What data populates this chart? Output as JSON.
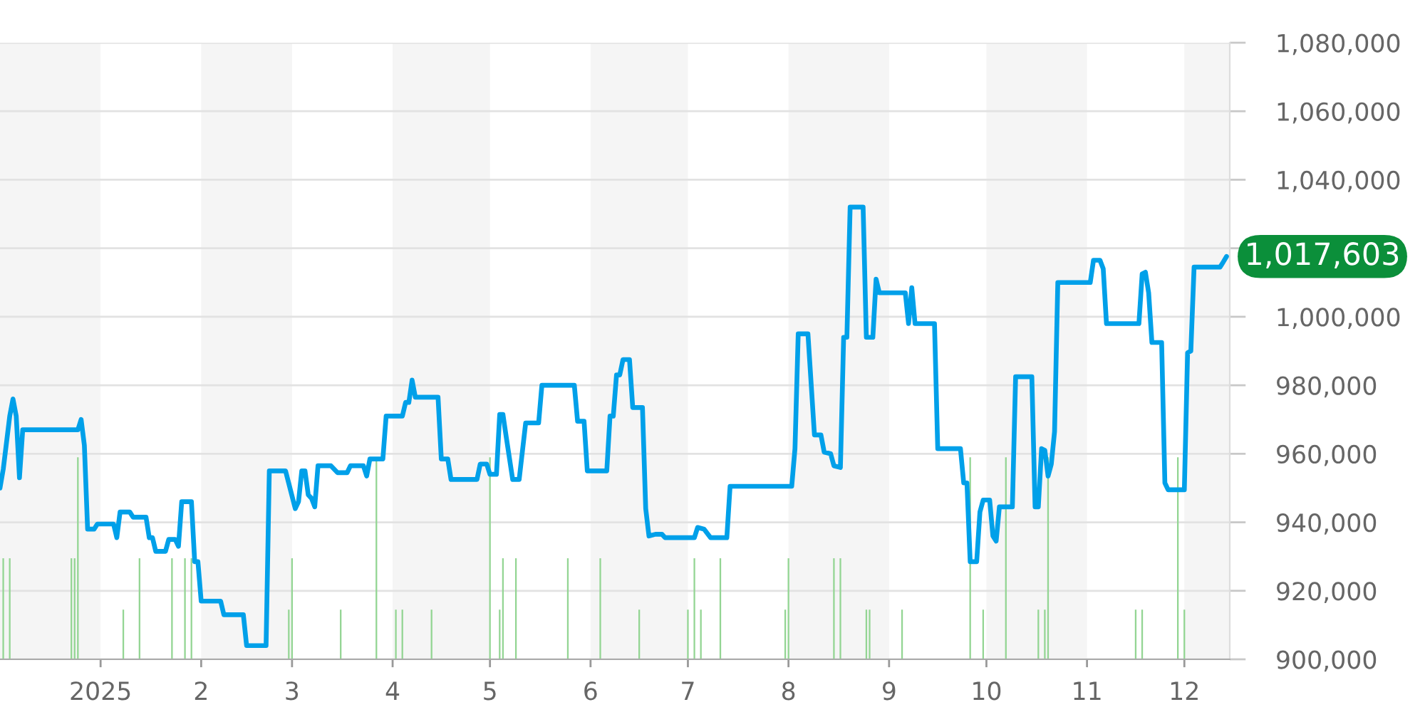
{
  "chart_data": {
    "type": "line",
    "xlim": [
      "2024-12-01",
      "2025-12-15"
    ],
    "xticks": [
      {
        "value": "2025-01-01",
        "label": "2025"
      },
      {
        "value": "2025-02-01",
        "label": "2"
      },
      {
        "value": "2025-03-01",
        "label": "3"
      },
      {
        "value": "2025-04-01",
        "label": "4"
      },
      {
        "value": "2025-05-01",
        "label": "5"
      },
      {
        "value": "2025-06-01",
        "label": "6"
      },
      {
        "value": "2025-07-01",
        "label": "7"
      },
      {
        "value": "2025-08-01",
        "label": "8"
      },
      {
        "value": "2025-09-01",
        "label": "9"
      },
      {
        "value": "2025-10-01",
        "label": "10"
      },
      {
        "value": "2025-11-01",
        "label": "11"
      },
      {
        "value": "2025-12-01",
        "label": "12"
      }
    ],
    "ylim": [
      900000,
      1080000
    ],
    "yticks": [
      {
        "value": 900000,
        "label": "900,000"
      },
      {
        "value": 920000,
        "label": "920,000"
      },
      {
        "value": 940000,
        "label": "940,000"
      },
      {
        "value": 960000,
        "label": "960,000"
      },
      {
        "value": 980000,
        "label": "980,000"
      },
      {
        "value": 1000000,
        "label": "1,000,000"
      },
      {
        "value": 1020000,
        "label": null
      },
      {
        "value": 1040000,
        "label": "1,040,000"
      },
      {
        "value": 1060000,
        "label": "1,060,000"
      },
      {
        "value": 1080000,
        "label": "1,080,000"
      }
    ],
    "grid": "y",
    "bands": [
      {
        "axis": "x",
        "from": "2024-12-01",
        "to": "2025-01-01",
        "color": "#f5f5f5"
      },
      {
        "axis": "x",
        "from": "2025-02-01",
        "to": "2025-03-01",
        "color": "#f5f5f5"
      },
      {
        "axis": "x",
        "from": "2025-04-01",
        "to": "2025-05-01",
        "color": "#f5f5f5"
      },
      {
        "axis": "x",
        "from": "2025-06-01",
        "to": "2025-07-01",
        "color": "#f5f5f5"
      },
      {
        "axis": "x",
        "from": "2025-08-01",
        "to": "2025-09-01",
        "color": "#f5f5f5"
      },
      {
        "axis": "x",
        "from": "2025-10-01",
        "to": "2025-11-01",
        "color": "#f5f5f5"
      },
      {
        "axis": "x",
        "from": "2025-12-01",
        "to": "2025-12-15",
        "color": "#f5f5f5"
      }
    ],
    "annotations": [
      {
        "text": "1,017,603",
        "x": "2025-12-14",
        "y": 1017603
      }
    ],
    "series": [
      {
        "type": "bar",
        "color": "#93d593",
        "x": [
          "2024-12-02",
          "2024-12-04",
          "2024-12-23",
          "2024-12-24",
          "2024-12-25",
          "2025-01-08",
          "2025-01-13",
          "2025-01-23",
          "2025-01-27",
          "2025-01-29",
          "2025-02-28",
          "2025-03-01",
          "2025-03-16",
          "2025-03-27",
          "2025-04-02",
          "2025-04-04",
          "2025-04-13",
          "2025-05-01",
          "2025-05-04",
          "2025-05-05",
          "2025-05-09",
          "2025-05-25",
          "2025-06-04",
          "2025-06-16",
          "2025-07-01",
          "2025-07-03",
          "2025-07-05",
          "2025-07-11",
          "2025-07-31",
          "2025-08-01",
          "2025-08-15",
          "2025-08-17",
          "2025-08-25",
          "2025-08-26",
          "2025-09-05",
          "2025-09-26",
          "2025-09-30",
          "2025-10-07",
          "2025-10-17",
          "2025-10-19",
          "2025-10-20",
          "2025-11-16",
          "2025-11-18",
          "2025-11-29",
          "2025-12-01"
        ],
        "values": [
          29500,
          29500,
          29500,
          29500,
          59000,
          14500,
          29500,
          29500,
          29500,
          29500,
          14500,
          29500,
          14500,
          59000,
          14500,
          14500,
          14500,
          59000,
          14500,
          29500,
          29500,
          29500,
          29500,
          14500,
          14500,
          29500,
          14500,
          29500,
          14500,
          29500,
          29500,
          29500,
          14500,
          14500,
          14500,
          59000,
          14500,
          59000,
          14500,
          14500,
          59000,
          14500,
          14500,
          59000,
          14500
        ],
        "base": [
          900000,
          900000,
          900000,
          900000,
          900000,
          900000,
          900000,
          900000,
          900000,
          900000,
          900000,
          900000,
          900000,
          900000,
          900000,
          900000,
          900000,
          900000,
          900000,
          900000,
          900000,
          900000,
          900000,
          900000,
          900000,
          900000,
          900000,
          900000,
          900000,
          900000,
          900000,
          900000,
          900000,
          900000,
          900000,
          900000,
          900000,
          900000,
          900000,
          900000,
          900000,
          900000,
          900000,
          900000,
          900000
        ]
      },
      {
        "color": "#00a0e9",
        "x": [
          "2024-12-01",
          "2024-12-02",
          "2024-12-04",
          "2024-12-05",
          "2024-12-06",
          "2024-12-07",
          "2024-12-08",
          "2024-12-25",
          "2024-12-26",
          "2024-12-27",
          "2024-12-28",
          "2024-12-30",
          "2024-12-31",
          "2025-01-05",
          "2025-01-06",
          "2025-01-07",
          "2025-01-10",
          "2025-01-11",
          "2025-01-15",
          "2025-01-16",
          "2025-01-17",
          "2025-01-18",
          "2025-01-21",
          "2025-01-22",
          "2025-01-24",
          "2025-01-25",
          "2025-01-26",
          "2025-01-29",
          "2025-01-30",
          "2025-01-31",
          "2025-02-01",
          "2025-02-07",
          "2025-02-08",
          "2025-02-14",
          "2025-02-15",
          "2025-02-21",
          "2025-02-22",
          "2025-02-27",
          "2025-03-02",
          "2025-03-03",
          "2025-03-04",
          "2025-03-05",
          "2025-03-06",
          "2025-03-07",
          "2025-03-08",
          "2025-03-09",
          "2025-03-13",
          "2025-03-15",
          "2025-03-18",
          "2025-03-19",
          "2025-03-23",
          "2025-03-24",
          "2025-03-25",
          "2025-03-29",
          "2025-03-30",
          "2025-04-04",
          "2025-04-05",
          "2025-04-06",
          "2025-04-07",
          "2025-04-08",
          "2025-04-15",
          "2025-04-16",
          "2025-04-18",
          "2025-04-19",
          "2025-04-27",
          "2025-04-28",
          "2025-04-30",
          "2025-05-01",
          "2025-05-03",
          "2025-05-04",
          "2025-05-05",
          "2025-05-06",
          "2025-05-08",
          "2025-05-10",
          "2025-05-12",
          "2025-05-16",
          "2025-05-17",
          "2025-05-27",
          "2025-05-28",
          "2025-05-30",
          "2025-05-31",
          "2025-06-06",
          "2025-06-07",
          "2025-06-08",
          "2025-06-09",
          "2025-06-10",
          "2025-06-11",
          "2025-06-13",
          "2025-06-14",
          "2025-06-17",
          "2025-06-18",
          "2025-06-19",
          "2025-06-21",
          "2025-06-23",
          "2025-06-24",
          "2025-07-03",
          "2025-07-04",
          "2025-07-06",
          "2025-07-08",
          "2025-07-13",
          "2025-07-14",
          "2025-08-02",
          "2025-08-03",
          "2025-08-04",
          "2025-08-07",
          "2025-08-09",
          "2025-08-11",
          "2025-08-12",
          "2025-08-14",
          "2025-08-15",
          "2025-08-17",
          "2025-08-18",
          "2025-08-19",
          "2025-08-20",
          "2025-08-24",
          "2025-08-25",
          "2025-08-27",
          "2025-08-28",
          "2025-08-29",
          "2025-09-06",
          "2025-09-07",
          "2025-09-08",
          "2025-09-09",
          "2025-09-15",
          "2025-09-16",
          "2025-09-23",
          "2025-09-24",
          "2025-09-25",
          "2025-09-26",
          "2025-09-28",
          "2025-09-29",
          "2025-09-30",
          "2025-10-02",
          "2025-10-03",
          "2025-10-04",
          "2025-10-05",
          "2025-10-09",
          "2025-10-10",
          "2025-10-15",
          "2025-10-16",
          "2025-10-17",
          "2025-10-18",
          "2025-10-19",
          "2025-10-20",
          "2025-10-21",
          "2025-10-22",
          "2025-10-23",
          "2025-11-02",
          "2025-11-03",
          "2025-11-05",
          "2025-11-06",
          "2025-11-07",
          "2025-11-17",
          "2025-11-18",
          "2025-11-19",
          "2025-11-20",
          "2025-11-21",
          "2025-11-24",
          "2025-11-25",
          "2025-11-26",
          "2025-12-01",
          "2025-12-02",
          "2025-12-03",
          "2025-12-04",
          "2025-12-12",
          "2025-12-13",
          "2025-12-14"
        ],
        "values": [
          950000,
          955500,
          971000,
          976000,
          971000,
          953000,
          967000,
          967000,
          970000,
          962500,
          938000,
          938000,
          939500,
          939500,
          935500,
          943000,
          943000,
          941500,
          941500,
          935500,
          935500,
          931500,
          931500,
          935000,
          935000,
          933000,
          946000,
          946000,
          928500,
          928500,
          917000,
          917000,
          913000,
          913000,
          904000,
          904000,
          955000,
          955000,
          944000,
          946000,
          955000,
          955000,
          948000,
          947000,
          944500,
          956500,
          956500,
          954500,
          954500,
          956500,
          956500,
          953500,
          958500,
          958500,
          971000,
          971000,
          975000,
          975000,
          981500,
          976500,
          976500,
          958500,
          958500,
          952500,
          952500,
          957000,
          957000,
          954000,
          954000,
          971500,
          971500,
          965000,
          952500,
          952500,
          969000,
          969000,
          980000,
          980000,
          969500,
          969500,
          955000,
          955000,
          971000,
          971000,
          983000,
          983000,
          987500,
          987500,
          973500,
          973500,
          944000,
          936000,
          936500,
          936500,
          935500,
          935500,
          938500,
          938000,
          935500,
          935500,
          950500,
          950500,
          961500,
          995000,
          995000,
          965500,
          965500,
          960500,
          960000,
          956500,
          956000,
          994000,
          994000,
          1032000,
          1032000,
          994000,
          994000,
          1011000,
          1007000,
          1007000,
          998000,
          1008500,
          998000,
          998000,
          961500,
          961500,
          951500,
          951500,
          928500,
          928500,
          943000,
          946500,
          946500,
          936000,
          934500,
          944500,
          944500,
          982500,
          982500,
          944500,
          944500,
          961500,
          961000,
          953500,
          957000,
          966500,
          1010000,
          1010000,
          1016500,
          1016500,
          1014000,
          998000,
          998000,
          1012500,
          1013000,
          1007000,
          992500,
          992500,
          951500,
          949500,
          949500,
          989500,
          990000,
          1014500,
          1014500,
          1016000,
          1017603
        ]
      }
    ]
  }
}
